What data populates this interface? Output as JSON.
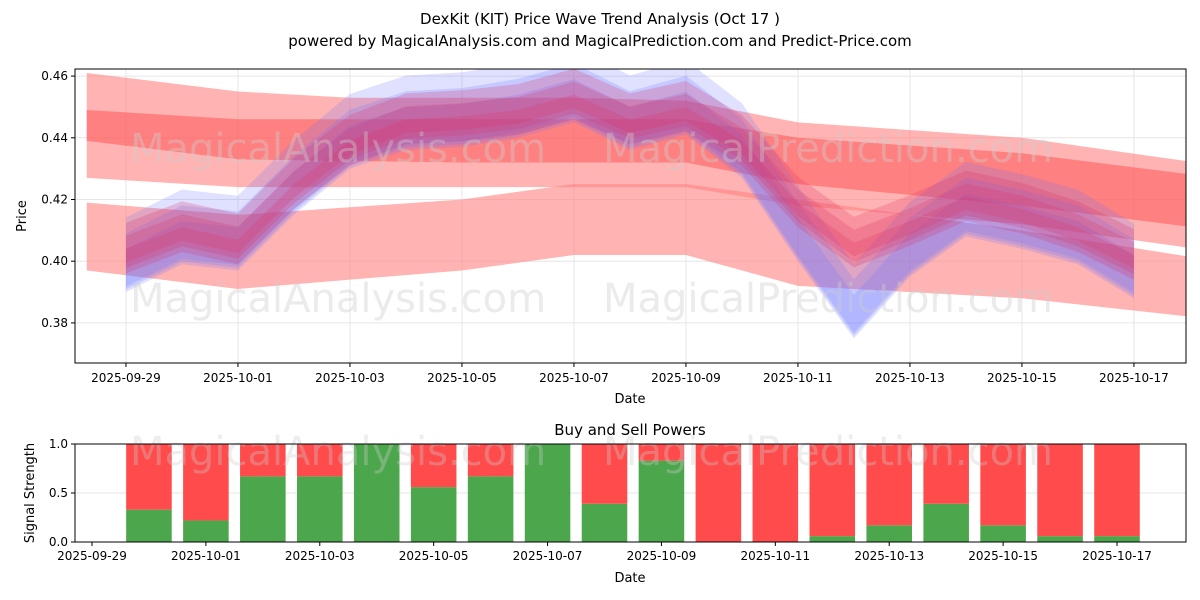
{
  "title": "DexKit (KIT) Price Wave Trend Analysis (Oct 17 )",
  "subtitle": "powered by MagicalAnalysis.com and MagicalPrediction.com and Predict-Price.com",
  "watermarks": [
    "MagicalAnalysis.com",
    "MagicalPrediction.com"
  ],
  "colors": {
    "red": "#ff4b4b",
    "green": "#4ca64c",
    "blue": "#6670ff",
    "band": "#ff8080"
  },
  "chart_data": [
    {
      "type": "area",
      "title": "",
      "xlabel": "Date",
      "ylabel": "Price",
      "x_origin": "2025-09-29",
      "xlim_days": [
        -0.91,
        18.93
      ],
      "ylim": [
        0.367,
        0.4623
      ],
      "x_ticks": [
        "2025-09-29",
        "2025-10-01",
        "2025-10-03",
        "2025-10-05",
        "2025-10-07",
        "2025-10-09",
        "2025-10-11",
        "2025-10-13",
        "2025-10-15",
        "2025-10-17"
      ],
      "y_ticks": [
        "0.38",
        "0.40",
        "0.42",
        "0.44",
        "0.46"
      ],
      "grid": true,
      "bands": [
        {
          "name": "upper-wide",
          "color": "#ff8080",
          "opacity": 0.6,
          "x": [
            -0.7,
            2,
            4,
            8,
            10,
            12,
            16,
            19.5
          ],
          "upper": [
            0.461,
            0.455,
            0.453,
            0.453,
            0.452,
            0.445,
            0.44,
            0.431
          ],
          "lower": [
            0.427,
            0.424,
            0.424,
            0.424,
            0.424,
            0.418,
            0.412,
            0.403
          ]
        },
        {
          "name": "upper-core",
          "color": "#ff5555",
          "opacity": 0.55,
          "x": [
            -0.7,
            2,
            6,
            10,
            12,
            16,
            19.5
          ],
          "upper": [
            0.449,
            0.446,
            0.446,
            0.446,
            0.44,
            0.435,
            0.427
          ],
          "lower": [
            0.439,
            0.433,
            0.432,
            0.432,
            0.425,
            0.418,
            0.41
          ]
        },
        {
          "name": "lower-wide",
          "color": "#ff8080",
          "opacity": 0.6,
          "x": [
            -0.7,
            2,
            6,
            8,
            10,
            12,
            16,
            19.5
          ],
          "upper": [
            0.419,
            0.415,
            0.42,
            0.425,
            0.425,
            0.42,
            0.41,
            0.4
          ],
          "lower": [
            0.397,
            0.391,
            0.397,
            0.402,
            0.402,
            0.392,
            0.388,
            0.381
          ]
        }
      ],
      "waves": [
        {
          "name": "price-wave-blue",
          "color": "#6670ff",
          "opacity": 0.35,
          "half_width": 0.007,
          "x": [
            0,
            1,
            2,
            3,
            4,
            5,
            6,
            7,
            8,
            9,
            10,
            11,
            12,
            13,
            14,
            15,
            16,
            17,
            18
          ],
          "y": [
            0.4,
            0.409,
            0.407,
            0.425,
            0.44,
            0.446,
            0.447,
            0.45,
            0.455,
            0.446,
            0.451,
            0.437,
            0.41,
            0.385,
            0.405,
            0.418,
            0.414,
            0.409,
            0.398
          ]
        },
        {
          "name": "price-wave-red",
          "color": "#dd3366",
          "opacity": 0.4,
          "half_width": 0.004,
          "x": [
            0,
            1,
            2,
            3,
            4,
            5,
            6,
            7,
            8,
            9,
            10,
            11,
            12,
            13,
            14,
            15,
            16,
            17,
            18
          ],
          "y": [
            0.403,
            0.41,
            0.406,
            0.424,
            0.438,
            0.445,
            0.446,
            0.448,
            0.453,
            0.445,
            0.449,
            0.438,
            0.418,
            0.405,
            0.412,
            0.42,
            0.416,
            0.41,
            0.401
          ]
        }
      ]
    },
    {
      "type": "bar",
      "title": "Buy and Sell Powers",
      "xlabel": "Date",
      "ylabel": "Signal Strength",
      "ylim": [
        0,
        1
      ],
      "y_ticks": [
        "0.0",
        "0.5",
        "1.0"
      ],
      "x_ticks": [
        "2025-09-29",
        "2025-10-01",
        "2025-10-03",
        "2025-10-05",
        "2025-10-07",
        "2025-10-09",
        "2025-10-11",
        "2025-10-13",
        "2025-10-15",
        "2025-10-17"
      ],
      "categories": [
        "2025-09-30",
        "2025-10-01",
        "2025-10-02",
        "2025-10-03",
        "2025-10-04",
        "2025-10-05",
        "2025-10-06",
        "2025-10-07",
        "2025-10-08",
        "2025-10-09",
        "2025-10-10",
        "2025-10-11",
        "2025-10-12",
        "2025-10-13",
        "2025-10-14",
        "2025-10-15",
        "2025-10-16",
        "2025-10-17"
      ],
      "series": [
        {
          "name": "Buy",
          "color": "#4ca64c",
          "values": [
            0.33,
            0.22,
            0.67,
            0.67,
            1.0,
            0.56,
            0.67,
            1.0,
            0.39,
            0.83,
            0,
            0,
            0.06,
            0.17,
            0.39,
            0.17,
            0.06,
            0.06
          ]
        },
        {
          "name": "Sell",
          "color": "#ff4b4b",
          "values": [
            0.67,
            0.78,
            0.33,
            0.33,
            0,
            0.44,
            0.33,
            0,
            0.61,
            0.17,
            1,
            1,
            0.94,
            0.83,
            0.61,
            0.83,
            0.94,
            0.94
          ]
        }
      ]
    }
  ]
}
